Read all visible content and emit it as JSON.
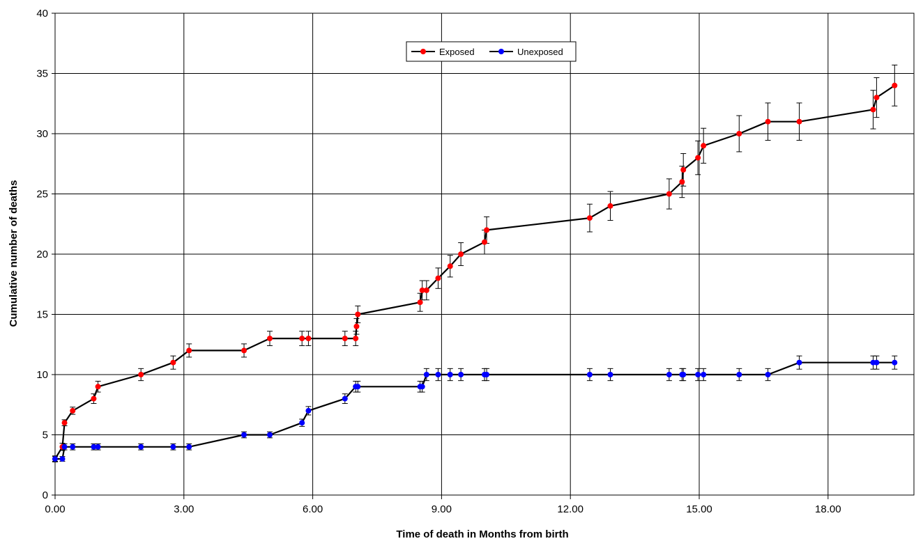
{
  "chart_data": {
    "type": "line",
    "title": "",
    "xlabel": "Time of death in Months from birth",
    "ylabel": "Cumulative number of deaths",
    "xlim": [
      0,
      20.0
    ],
    "ylim": [
      0,
      40
    ],
    "x_ticks": [
      {
        "value": 0,
        "label": "0.00"
      },
      {
        "value": 3,
        "label": "3.00"
      },
      {
        "value": 6,
        "label": "6.00"
      },
      {
        "value": 9,
        "label": "9.00"
      },
      {
        "value": 12,
        "label": "12.00"
      },
      {
        "value": 15,
        "label": "15.00"
      },
      {
        "value": 18,
        "label": "18.00"
      }
    ],
    "y_ticks": [
      {
        "value": 0,
        "label": "0"
      },
      {
        "value": 5,
        "label": "5"
      },
      {
        "value": 10,
        "label": "10"
      },
      {
        "value": 15,
        "label": "15"
      },
      {
        "value": 20,
        "label": "20"
      },
      {
        "value": 25,
        "label": "25"
      },
      {
        "value": 30,
        "label": "30"
      },
      {
        "value": 35,
        "label": "35"
      },
      {
        "value": 40,
        "label": "40"
      }
    ],
    "grid": true,
    "legend_position": "top-center",
    "series": [
      {
        "name": "Exposed",
        "color": "#ff0000",
        "points": [
          {
            "x": 0.0,
            "y": 3,
            "err": 0.25
          },
          {
            "x": 0.17,
            "y": 4,
            "err": 0.3
          },
          {
            "x": 0.22,
            "y": 6,
            "err": 0.25
          },
          {
            "x": 0.41,
            "y": 7,
            "err": 0.3
          },
          {
            "x": 0.9,
            "y": 8,
            "err": 0.4
          },
          {
            "x": 1.0,
            "y": 9,
            "err": 0.45
          },
          {
            "x": 2.0,
            "y": 10,
            "err": 0.5
          },
          {
            "x": 2.75,
            "y": 11,
            "err": 0.55
          },
          {
            "x": 3.12,
            "y": 12,
            "err": 0.55
          },
          {
            "x": 4.4,
            "y": 12,
            "err": 0.55
          },
          {
            "x": 5.0,
            "y": 13,
            "err": 0.6
          },
          {
            "x": 5.75,
            "y": 13,
            "err": 0.6
          },
          {
            "x": 5.9,
            "y": 13,
            "err": 0.6
          },
          {
            "x": 6.75,
            "y": 13,
            "err": 0.6
          },
          {
            "x": 7.0,
            "y": 13,
            "err": 0.6
          },
          {
            "x": 7.02,
            "y": 14,
            "err": 0.65
          },
          {
            "x": 7.05,
            "y": 15,
            "err": 0.7
          },
          {
            "x": 8.5,
            "y": 16,
            "err": 0.75
          },
          {
            "x": 8.55,
            "y": 17,
            "err": 0.8
          },
          {
            "x": 8.65,
            "y": 17,
            "err": 0.8
          },
          {
            "x": 8.92,
            "y": 18,
            "err": 0.85
          },
          {
            "x": 9.2,
            "y": 19,
            "err": 0.9
          },
          {
            "x": 9.45,
            "y": 20,
            "err": 0.95
          },
          {
            "x": 10.0,
            "y": 21,
            "err": 1.0
          },
          {
            "x": 10.05,
            "y": 22,
            "err": 1.1
          },
          {
            "x": 12.45,
            "y": 23,
            "err": 1.15
          },
          {
            "x": 12.93,
            "y": 24,
            "err": 1.2
          },
          {
            "x": 14.3,
            "y": 25,
            "err": 1.25
          },
          {
            "x": 14.6,
            "y": 26,
            "err": 1.3
          },
          {
            "x": 14.63,
            "y": 27,
            "err": 1.35
          },
          {
            "x": 14.97,
            "y": 28,
            "err": 1.4
          },
          {
            "x": 15.1,
            "y": 29,
            "err": 1.45
          },
          {
            "x": 15.93,
            "y": 30,
            "err": 1.5
          },
          {
            "x": 16.6,
            "y": 31,
            "err": 1.55
          },
          {
            "x": 17.33,
            "y": 31,
            "err": 1.55
          },
          {
            "x": 19.05,
            "y": 32,
            "err": 1.6
          },
          {
            "x": 19.13,
            "y": 33,
            "err": 1.65
          },
          {
            "x": 19.55,
            "y": 34,
            "err": 1.7
          }
        ]
      },
      {
        "name": "Unexposed",
        "color": "#0000ff",
        "points": [
          {
            "x": 0.0,
            "y": 3,
            "err": 0.2
          },
          {
            "x": 0.17,
            "y": 3,
            "err": 0.2
          },
          {
            "x": 0.22,
            "y": 4,
            "err": 0.25
          },
          {
            "x": 0.41,
            "y": 4,
            "err": 0.25
          },
          {
            "x": 0.9,
            "y": 4,
            "err": 0.25
          },
          {
            "x": 1.0,
            "y": 4,
            "err": 0.25
          },
          {
            "x": 2.0,
            "y": 4,
            "err": 0.25
          },
          {
            "x": 2.75,
            "y": 4,
            "err": 0.25
          },
          {
            "x": 3.12,
            "y": 4,
            "err": 0.25
          },
          {
            "x": 4.4,
            "y": 5,
            "err": 0.25
          },
          {
            "x": 5.0,
            "y": 5,
            "err": 0.25
          },
          {
            "x": 5.75,
            "y": 6,
            "err": 0.3
          },
          {
            "x": 5.9,
            "y": 7,
            "err": 0.35
          },
          {
            "x": 6.75,
            "y": 8,
            "err": 0.4
          },
          {
            "x": 7.0,
            "y": 9,
            "err": 0.45
          },
          {
            "x": 7.05,
            "y": 9,
            "err": 0.45
          },
          {
            "x": 8.5,
            "y": 9,
            "err": 0.45
          },
          {
            "x": 8.55,
            "y": 9,
            "err": 0.45
          },
          {
            "x": 8.65,
            "y": 10,
            "err": 0.5
          },
          {
            "x": 8.92,
            "y": 10,
            "err": 0.5
          },
          {
            "x": 9.2,
            "y": 10,
            "err": 0.5
          },
          {
            "x": 9.45,
            "y": 10,
            "err": 0.5
          },
          {
            "x": 10.0,
            "y": 10,
            "err": 0.5
          },
          {
            "x": 10.05,
            "y": 10,
            "err": 0.5
          },
          {
            "x": 12.45,
            "y": 10,
            "err": 0.5
          },
          {
            "x": 12.93,
            "y": 10,
            "err": 0.5
          },
          {
            "x": 14.3,
            "y": 10,
            "err": 0.5
          },
          {
            "x": 14.6,
            "y": 10,
            "err": 0.5
          },
          {
            "x": 14.63,
            "y": 10,
            "err": 0.5
          },
          {
            "x": 14.97,
            "y": 10,
            "err": 0.5
          },
          {
            "x": 15.1,
            "y": 10,
            "err": 0.5
          },
          {
            "x": 15.93,
            "y": 10,
            "err": 0.5
          },
          {
            "x": 16.6,
            "y": 10,
            "err": 0.5
          },
          {
            "x": 17.33,
            "y": 11,
            "err": 0.55
          },
          {
            "x": 19.05,
            "y": 11,
            "err": 0.55
          },
          {
            "x": 19.13,
            "y": 11,
            "err": 0.55
          },
          {
            "x": 19.55,
            "y": 11,
            "err": 0.55
          }
        ]
      }
    ]
  }
}
